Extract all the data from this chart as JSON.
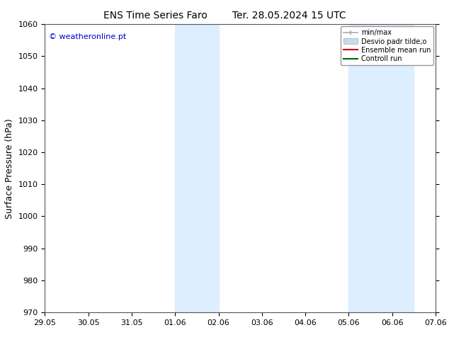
{
  "title_left": "ENS Time Series Faro",
  "title_right": "Ter. 28.05.2024 15 UTC",
  "ylabel": "Surface Pressure (hPa)",
  "ylim": [
    970,
    1060
  ],
  "yticks": [
    970,
    980,
    990,
    1000,
    1010,
    1020,
    1030,
    1040,
    1050,
    1060
  ],
  "xtick_labels": [
    "29.05",
    "30.05",
    "31.05",
    "01.06",
    "02.06",
    "03.06",
    "04.06",
    "05.06",
    "06.06",
    "07.06"
  ],
  "xlim": [
    0,
    9
  ],
  "watermark": "© weatheronline.pt",
  "watermark_color": "#0000cc",
  "bg_color": "#ffffff",
  "plot_bg_color": "#ffffff",
  "shade_regions": [
    {
      "xstart": 3.0,
      "xend": 4.0
    },
    {
      "xstart": 7.0,
      "xend": 8.5
    }
  ],
  "shade_color": "#ddeeff",
  "legend_labels": [
    "min/max",
    "Desvio padr tilde;o",
    "Ensemble mean run",
    "Controll run"
  ],
  "legend_colors": [
    "#aaaaaa",
    "#c8dcea",
    "#cc0000",
    "#006600"
  ],
  "title_fontsize": 10,
  "tick_fontsize": 8,
  "ylabel_fontsize": 9,
  "watermark_fontsize": 8
}
